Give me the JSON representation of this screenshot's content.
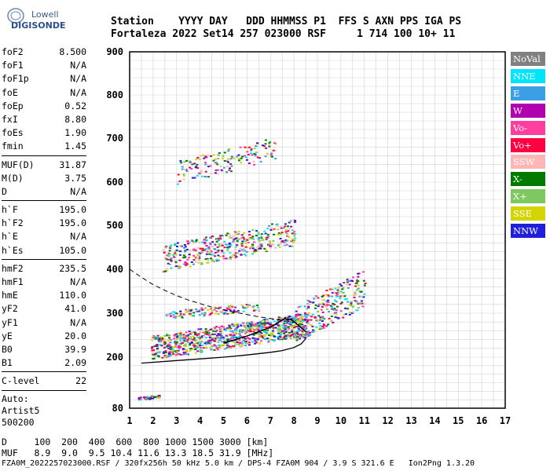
{
  "logo": {
    "line1": "Lowell",
    "line2": "DIGISONDE"
  },
  "header": {
    "labels": "Station    YYYY DAY   DDD HHMMSS P1  FFS S AXN PPS IGA PS",
    "values": "Fortaleza 2022 Set14 257 023000 RSF     1 714 100 10+ 11"
  },
  "params": {
    "group1": [
      {
        "name": "foF2",
        "value": "8.500"
      },
      {
        "name": "foF1",
        "value": "N/A"
      },
      {
        "name": "foF1p",
        "value": "N/A"
      },
      {
        "name": "foE",
        "value": "N/A"
      },
      {
        "name": "foEp",
        "value": "0.52"
      },
      {
        "name": "fxI",
        "value": "8.80"
      },
      {
        "name": "foEs",
        "value": "1.90"
      },
      {
        "name": "fmin",
        "value": "1.45"
      }
    ],
    "group2": [
      {
        "name": "MUF(D)",
        "value": "31.87"
      },
      {
        "name": "M(D)",
        "value": "3.75"
      },
      {
        "name": "D",
        "value": "N/A"
      }
    ],
    "group3": [
      {
        "name": "h`F",
        "value": "195.0"
      },
      {
        "name": "h`F2",
        "value": "195.0"
      },
      {
        "name": "h`E",
        "value": "N/A"
      },
      {
        "name": "h`Es",
        "value": "105.0"
      }
    ],
    "group4": [
      {
        "name": "hmF2",
        "value": "235.5"
      },
      {
        "name": "hmF1",
        "value": "N/A"
      },
      {
        "name": "hmE",
        "value": "110.0"
      },
      {
        "name": "yF2",
        "value": "41.0"
      },
      {
        "name": "yF1",
        "value": "N/A"
      },
      {
        "name": "yE",
        "value": "20.0"
      },
      {
        "name": "B0",
        "value": "39.9"
      },
      {
        "name": "B1",
        "value": "2.09"
      }
    ],
    "group5": [
      {
        "name": "C-level",
        "value": "22"
      }
    ],
    "auto": [
      "Auto:",
      "Artist5",
      "500200"
    ]
  },
  "legend": [
    {
      "label": "NoVal",
      "color": "#808080",
      "text": "#ffffff"
    },
    {
      "label": "NNE",
      "color": "#00e5ff",
      "text": "#ffffff"
    },
    {
      "label": "E",
      "color": "#3c9ee5",
      "text": "#ffffff"
    },
    {
      "label": "W",
      "color": "#b000b0",
      "text": "#ffffff"
    },
    {
      "label": "Vo-",
      "color": "#ff3fa0",
      "text": "#ffffff"
    },
    {
      "label": "Vo+",
      "color": "#ff0040",
      "text": "#ffffff"
    },
    {
      "label": "SSW",
      "color": "#ffb6b6",
      "text": "#ffffff"
    },
    {
      "label": "X-",
      "color": "#007a00",
      "text": "#ffffff"
    },
    {
      "label": "X+",
      "color": "#7dc860",
      "text": "#ffffff"
    },
    {
      "label": "SSE",
      "color": "#d4d400",
      "text": "#ffffff"
    },
    {
      "label": "NNW",
      "color": "#2020d8",
      "text": "#ffffff"
    }
  ],
  "bottom": {
    "d_row": "D     100  200  400  600  800 1000 1500 3000 [km]",
    "muf_row": "MUF   8.9  9.0  9.5 10.4 11.6 13.3 18.5 31.9 [MHz]"
  },
  "footer": "FZA0M_2022257023000.RSF / 320fx256h 50 kHz 5.0 km / DPS-4 FZA0M 904 / 3.9 S 321.6 E   Ion2Png 1.3.20",
  "chart_data": {
    "type": "scatter",
    "xlim": [
      1,
      17
    ],
    "ylim": [
      80,
      900
    ],
    "x_ticks": [
      1,
      2,
      3,
      4,
      5,
      6,
      7,
      8,
      9,
      10,
      11,
      12,
      13,
      14,
      15,
      16,
      17
    ],
    "y_ticks": [
      80,
      200,
      300,
      400,
      500,
      600,
      700,
      800,
      900
    ],
    "grid": true,
    "legend_position": "right",
    "clusters": [
      {
        "name": "Es trace",
        "fmin": 1.35,
        "fmax": 2.3,
        "hmin": 100,
        "hmax": 112,
        "n": 40
      },
      {
        "name": "F2 O trace",
        "fmin": 1.9,
        "fmax": 8.6,
        "hmin": 200,
        "hmax": 290,
        "n": 900
      },
      {
        "name": "F2 X trace",
        "fmin": 8.0,
        "fmax": 11.0,
        "hmin": 240,
        "hmax": 380,
        "n": 260
      },
      {
        "name": "F2 multiple",
        "fmin": 2.4,
        "fmax": 8.0,
        "hmin": 400,
        "hmax": 500,
        "n": 420
      },
      {
        "name": "third hop",
        "fmin": 3.0,
        "fmax": 7.2,
        "hmin": 600,
        "hmax": 690,
        "n": 150
      },
      {
        "name": "spread",
        "fmin": 2.5,
        "fmax": 6.5,
        "hmin": 290,
        "hmax": 320,
        "n": 120
      }
    ],
    "profile_line": [
      [
        1.5,
        186
      ],
      [
        3,
        192
      ],
      [
        4,
        196
      ],
      [
        5,
        200
      ],
      [
        6,
        205
      ],
      [
        7,
        211
      ],
      [
        7.5,
        215
      ],
      [
        8,
        222
      ],
      [
        8.3,
        230
      ],
      [
        8.5,
        242
      ]
    ],
    "dashed_curve": [
      [
        1,
        400
      ],
      [
        1.5,
        382
      ],
      [
        2,
        365
      ],
      [
        2.5,
        352
      ],
      [
        3,
        340
      ],
      [
        3.5,
        330
      ],
      [
        4,
        322
      ],
      [
        4.5,
        314
      ],
      [
        5,
        308
      ],
      [
        5.5,
        302
      ],
      [
        6,
        297
      ],
      [
        6.5,
        292
      ],
      [
        7,
        288
      ],
      [
        7.5,
        284
      ],
      [
        8,
        279
      ],
      [
        8.4,
        274
      ]
    ],
    "trace_line": [
      [
        5,
        232
      ],
      [
        5.5,
        240
      ],
      [
        6,
        248
      ],
      [
        6.5,
        258
      ],
      [
        7,
        268
      ],
      [
        7.3,
        278
      ],
      [
        7.6,
        287
      ],
      [
        7.9,
        285
      ],
      [
        8.2,
        272
      ],
      [
        8.5,
        258
      ]
    ]
  }
}
